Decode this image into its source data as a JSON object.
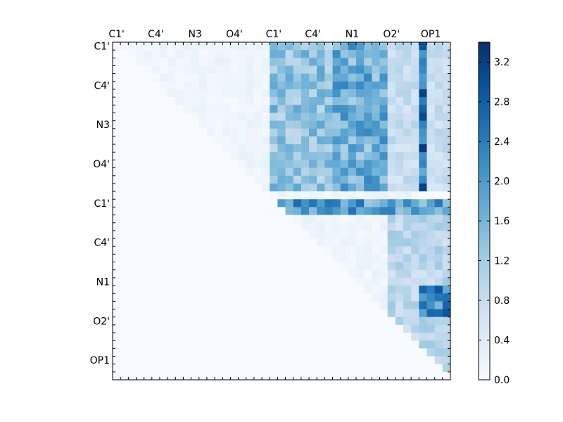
{
  "chart_data": {
    "type": "heatmap",
    "size": 43,
    "atom_labels": [
      "C1'",
      "C4'",
      "N3",
      "O4'",
      "C1'",
      "C4'",
      "N1",
      "O2'",
      "OP1"
    ],
    "label_positions": [
      0,
      5,
      10,
      15,
      20,
      25,
      30,
      35,
      40
    ],
    "colorbar": {
      "min": 0.0,
      "max": 3.4,
      "ticks": [
        "0.0",
        "0.4",
        "0.8",
        "1.2",
        "1.6",
        "2.0",
        "2.4",
        "2.8",
        "3.2"
      ],
      "colormap": "Blues",
      "colors": [
        "#f7fbff",
        "#deebf7",
        "#c6dbef",
        "#9ecae1",
        "#6baed6",
        "#4292c6",
        "#2171b5",
        "#08519c",
        "#08306b"
      ]
    },
    "bands": [
      {
        "rows": [
          0,
          19
        ],
        "cols": [
          20,
          28
        ],
        "level": 1.6
      },
      {
        "rows": [
          0,
          19
        ],
        "cols": [
          28,
          35
        ],
        "level": 2.0
      },
      {
        "rows": [
          0,
          19
        ],
        "cols": [
          35,
          43
        ],
        "level": 0.9
      },
      {
        "rows": [
          0,
          19
        ],
        "cols": [
          39,
          40
        ],
        "level": 2.9
      },
      {
        "rows": [
          20,
          22
        ],
        "cols": [
          20,
          43
        ],
        "level": 2.3
      },
      {
        "rows": [
          22,
          43
        ],
        "cols": [
          35,
          43
        ],
        "level": 1.1
      },
      {
        "rows": [
          31,
          35
        ],
        "cols": [
          39,
          43
        ],
        "level": 2.6
      }
    ]
  }
}
